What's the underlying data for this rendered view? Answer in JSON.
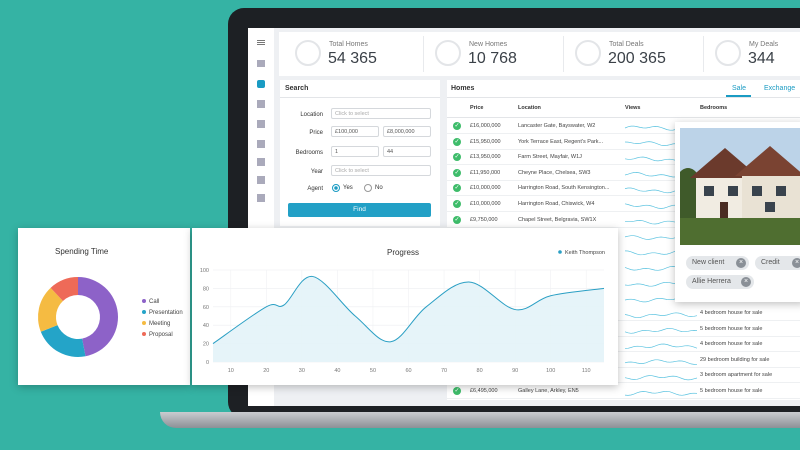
{
  "stats": [
    {
      "label": "Total Homes",
      "value": "54 365"
    },
    {
      "label": "New Homes",
      "value": "10 768"
    },
    {
      "label": "Total Deals",
      "value": "200 365"
    },
    {
      "label": "My Deals",
      "value": "344"
    }
  ],
  "search": {
    "title": "Search",
    "location_label": "Location",
    "location_placeholder": "Click to select",
    "price_label": "Price",
    "price_min": "£100,000",
    "price_max": "£8,000,000",
    "bedrooms_label": "Bedrooms",
    "bedrooms_min": "1",
    "bedrooms_max": "44",
    "year_label": "Year",
    "year_placeholder": "Click to select",
    "agent_label": "Agent",
    "agent_yes": "Yes",
    "agent_no": "No",
    "button": "Find"
  },
  "homes": {
    "title": "Homes",
    "tabs": [
      "Sale",
      "Exchange"
    ],
    "columns": [
      "Price",
      "Location",
      "Views",
      "Bedrooms"
    ],
    "rows_top": [
      {
        "price": "£16,000,000",
        "location": "Lancaster Gate, Bayswater, W2"
      },
      {
        "price": "£15,950,000",
        "location": "York Terrace East, Regent's Park..."
      },
      {
        "price": "£13,950,000",
        "location": "Farm Street, Mayfair, W1J"
      },
      {
        "price": "£11,950,000",
        "location": "Cheyne Place, Chelsea, SW3"
      },
      {
        "price": "£10,000,000",
        "location": "Harrington Road, South Kensington..."
      },
      {
        "price": "£10,000,000",
        "location": "Harrington Road, Chiswick, W4"
      },
      {
        "price": "£9,750,000",
        "location": "Chapel Street, Belgravia, SW1X"
      }
    ],
    "rows_bottom": [
      {
        "bedrooms": "4 bedroom house for sale"
      },
      {
        "bedrooms": "5 bedroom house for sale"
      },
      {
        "bedrooms": "4 bedroom house for sale"
      },
      {
        "bedrooms": "29 bedroom building for sale"
      },
      {
        "bedrooms": "3 bedroom apartment for sale"
      },
      {
        "price": "£6,495,000",
        "location": "Galley Lane, Arkley, EN5",
        "bedrooms": "5 bedroom house for sale"
      }
    ]
  },
  "photo_card": {
    "tags": [
      "New client",
      "Credit",
      "Allie Herrera"
    ]
  },
  "chart_data": [
    {
      "type": "pie",
      "title": "Spending Time",
      "categories": [
        "Call",
        "Presentation",
        "Meeting",
        "Proposal"
      ],
      "values": [
        47,
        22,
        19,
        12
      ],
      "colors": [
        "#8d62c8",
        "#24a4c8",
        "#f5bb42",
        "#ee6a58"
      ],
      "legend": "right"
    },
    {
      "type": "line",
      "title": "Progress",
      "x": [
        5,
        20,
        25,
        33,
        45,
        55,
        65,
        77,
        90,
        100,
        115
      ],
      "series": [
        {
          "name": "Keith Thompson",
          "color": "#2a9fc4",
          "values": [
            20,
            60,
            62,
            93,
            50,
            22,
            60,
            87,
            57,
            72,
            80
          ]
        }
      ],
      "xlim": [
        5,
        115
      ],
      "xticks": [
        10,
        20,
        30,
        40,
        50,
        60,
        70,
        80,
        90,
        100,
        110
      ],
      "ylim": [
        0,
        100
      ],
      "yticks": [
        0,
        20,
        40,
        60,
        80,
        100
      ],
      "grid": true
    }
  ]
}
